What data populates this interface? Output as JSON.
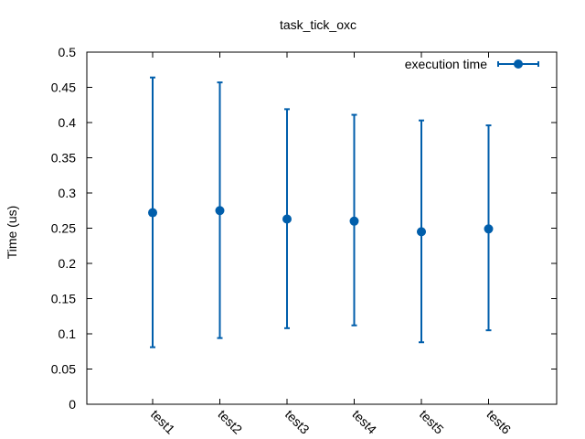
{
  "chart_data": {
    "type": "scatter",
    "title": "task_tick_oxc",
    "xlabel": "",
    "ylabel": "Time (us)",
    "categories": [
      "test1",
      "test2",
      "test3",
      "test4",
      "test5",
      "test6"
    ],
    "ylim": [
      0,
      0.5
    ],
    "yticks": [
      "0",
      "0.05",
      "0.1",
      "0.15",
      "0.2",
      "0.25",
      "0.3",
      "0.35",
      "0.4",
      "0.45",
      "0.5"
    ],
    "grid": false,
    "legend_position": "top-right",
    "series": [
      {
        "name": "execution time",
        "color": "#005eab",
        "values": [
          0.272,
          0.275,
          0.263,
          0.26,
          0.245,
          0.249
        ],
        "err_low": [
          0.081,
          0.094,
          0.108,
          0.112,
          0.088,
          0.105
        ],
        "err_high": [
          0.464,
          0.457,
          0.419,
          0.411,
          0.403,
          0.396
        ]
      }
    ]
  }
}
